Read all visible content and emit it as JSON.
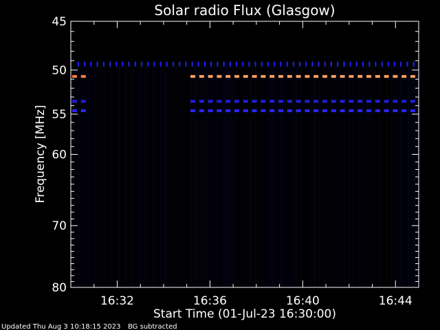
{
  "chart_data": {
    "type": "heatmap",
    "title": "Solar radio Flux (Glasgow)",
    "xlabel": "Start Time (01-Jul-23 16:30:00)",
    "ylabel": "Frequency [MHz]",
    "x_ticks": [
      {
        "minute": 2,
        "label": "16:32"
      },
      {
        "minute": 6,
        "label": "16:36"
      },
      {
        "minute": 10,
        "label": "16:40"
      },
      {
        "minute": 14,
        "label": "16:44"
      }
    ],
    "y_ticks": [
      45,
      50,
      55,
      60,
      70,
      80
    ],
    "xlim_minutes": [
      0,
      15
    ],
    "ylim_mhz": [
      45,
      80
    ],
    "y_scale": "log",
    "inverted_y": true,
    "background_subtracted": true,
    "emission_lanes": [
      {
        "freq_mhz": 49.4,
        "color": "#2020ff",
        "pattern": "ticks",
        "minutes": [
          0,
          15
        ]
      },
      {
        "freq_mhz": 50.7,
        "color": "#ffa060",
        "pattern": "dashes",
        "minutes": [
          5.1,
          15
        ]
      },
      {
        "freq_mhz": 50.7,
        "color": "#ff8040",
        "pattern": "dashes",
        "minutes": [
          0,
          0.8
        ]
      },
      {
        "freq_mhz": 53.5,
        "color": "#2020e0",
        "pattern": "dashes",
        "minutes": [
          5.1,
          15
        ]
      },
      {
        "freq_mhz": 54.6,
        "color": "#2828ff",
        "pattern": "dashes",
        "minutes": [
          5.1,
          15
        ]
      },
      {
        "freq_mhz": 53.5,
        "color": "#2020e0",
        "pattern": "dashes",
        "minutes": [
          0,
          0.7
        ]
      },
      {
        "freq_mhz": 54.6,
        "color": "#2828ff",
        "pattern": "dashes",
        "minutes": [
          0,
          0.7
        ]
      }
    ],
    "colors": {
      "background": "#000000",
      "noise": "#06061e",
      "axes": "#ffffff"
    }
  },
  "footer": {
    "updated": "Updated Thu Aug  3 10:18:15 2023",
    "note": "BG subtracted"
  }
}
